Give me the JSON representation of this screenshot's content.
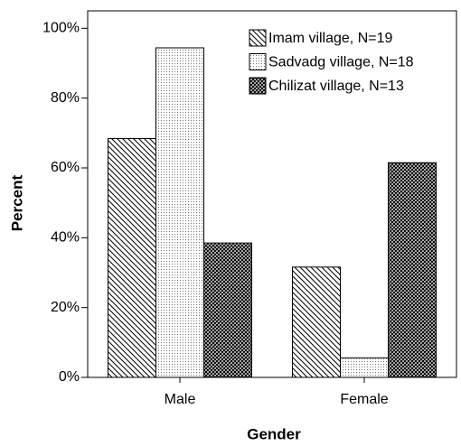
{
  "chart_data": {
    "type": "bar",
    "x_label": "Gender",
    "y_label": "Percent",
    "categories": [
      "Male",
      "Female"
    ],
    "series": [
      {
        "name": "Imam village, N=19",
        "color": "#000000",
        "pattern": "diagonal",
        "values": [
          68.4,
          31.6
        ]
      },
      {
        "name": "Sadvadg village, N=18",
        "color": "#000000",
        "pattern": "dots",
        "values": [
          94.4,
          5.6
        ]
      },
      {
        "name": "Chilizat village, N=13",
        "color": "#000000",
        "pattern": "crosshatch",
        "values": [
          38.5,
          61.5
        ]
      }
    ],
    "ylim": [
      0,
      105
    ],
    "yticks": [
      {
        "value": 0,
        "label": "0%"
      },
      {
        "value": 20,
        "label": "20%"
      },
      {
        "value": 40,
        "label": "40%"
      },
      {
        "value": 60,
        "label": "60%"
      },
      {
        "value": 80,
        "label": "80%"
      },
      {
        "value": 100,
        "label": "100%"
      }
    ],
    "legend": "top-right"
  }
}
